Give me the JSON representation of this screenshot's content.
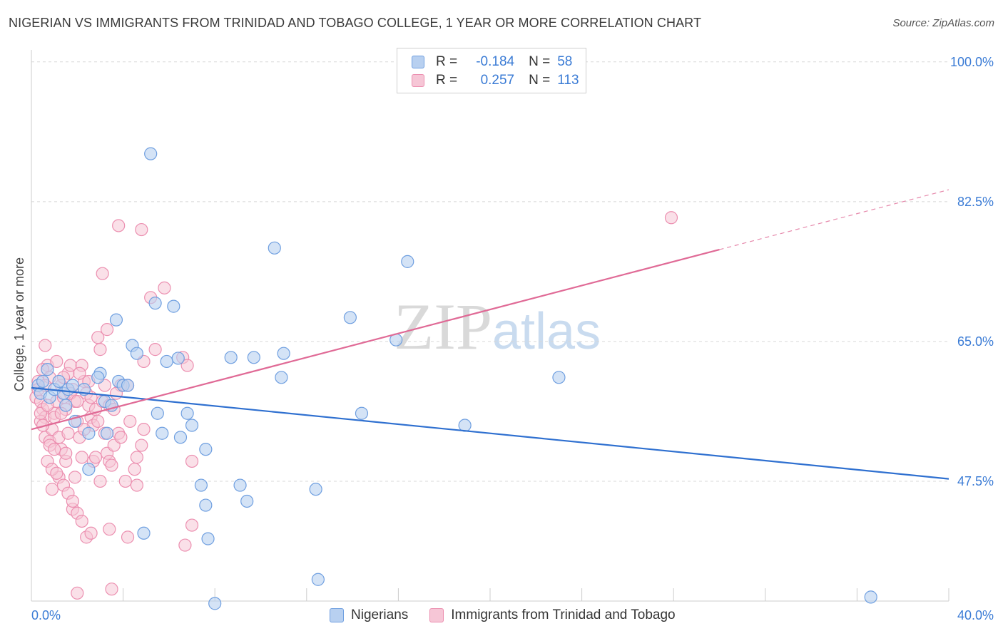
{
  "title": "NIGERIAN VS IMMIGRANTS FROM TRINIDAD AND TOBAGO COLLEGE, 1 YEAR OR MORE CORRELATION CHART",
  "source": "Source: ZipAtlas.com",
  "watermark": {
    "zip": "ZIP",
    "atlas": "atlas"
  },
  "legend": {
    "rows": [
      {
        "r_label": "R =",
        "r_value": "-0.184",
        "n_label": "N =",
        "n_value": "58"
      },
      {
        "r_label": "R =",
        "r_value": "0.257",
        "n_label": "N =",
        "n_value": "113"
      }
    ]
  },
  "bottom_legend": {
    "blue": "Nigerians",
    "pink": "Immigrants from Trinidad and Tobago"
  },
  "colors": {
    "blue_fill": "#b8d0f0",
    "blue_stroke": "#6f9fe0",
    "blue_line": "#2f70d0",
    "pink_fill": "#f6c6d6",
    "pink_stroke": "#ec8fb0",
    "pink_line": "#e06a96",
    "grid": "#d8d8d8",
    "tick_label": "#3a7bd5"
  },
  "chart_data": {
    "type": "scatter",
    "title": "NIGERIAN VS IMMIGRANTS FROM TRINIDAD AND TOBAGO COLLEGE, 1 YEAR OR MORE CORRELATION CHART",
    "xlabel": "",
    "ylabel": "College, 1 year or more",
    "xlim": [
      0,
      40
    ],
    "ylim": [
      32.5,
      101.5
    ],
    "x_tick_labels": [
      "0.0%",
      "40.0%"
    ],
    "y_ticks": [
      100.0,
      82.5,
      65.0,
      47.5
    ],
    "y_tick_labels": [
      "100.0%",
      "82.5%",
      "65.0%",
      "47.5%"
    ],
    "grid": true,
    "series": [
      {
        "name": "Nigerians",
        "r": -0.184,
        "n": 58,
        "trend": {
          "x0": 0,
          "y0": 59.2,
          "x1": 40,
          "y1": 47.8,
          "dashed_from": null
        },
        "points": [
          [
            0.3,
            59.5
          ],
          [
            0.5,
            60.0
          ],
          [
            0.7,
            61.5
          ],
          [
            0.4,
            58.5
          ],
          [
            0.8,
            58.0
          ],
          [
            1.0,
            59.0
          ],
          [
            1.2,
            60.0
          ],
          [
            1.4,
            58.5
          ],
          [
            1.6,
            59.0
          ],
          [
            1.8,
            59.5
          ],
          [
            1.5,
            57.0
          ],
          [
            1.9,
            55.0
          ],
          [
            2.5,
            53.5
          ],
          [
            2.3,
            59.0
          ],
          [
            3.0,
            61.0
          ],
          [
            2.9,
            60.5
          ],
          [
            3.2,
            57.5
          ],
          [
            3.5,
            57.0
          ],
          [
            3.8,
            60.0
          ],
          [
            4.0,
            59.5
          ],
          [
            4.2,
            59.5
          ],
          [
            3.7,
            67.7
          ],
          [
            4.4,
            64.5
          ],
          [
            4.6,
            63.5
          ],
          [
            5.2,
            88.5
          ],
          [
            5.4,
            69.8
          ],
          [
            5.5,
            56.0
          ],
          [
            5.7,
            53.5
          ],
          [
            5.9,
            62.5
          ],
          [
            6.2,
            69.4
          ],
          [
            6.4,
            62.9
          ],
          [
            6.8,
            56.0
          ],
          [
            7.0,
            54.5
          ],
          [
            6.5,
            53.0
          ],
          [
            7.6,
            51.5
          ],
          [
            7.4,
            47.0
          ],
          [
            7.6,
            44.5
          ],
          [
            7.7,
            40.3
          ],
          [
            8.0,
            32.2
          ],
          [
            8.7,
            63.0
          ],
          [
            9.1,
            47.0
          ],
          [
            9.4,
            45.0
          ],
          [
            9.7,
            63.0
          ],
          [
            10.6,
            76.7
          ],
          [
            10.9,
            60.5
          ],
          [
            11.0,
            63.5
          ],
          [
            12.4,
            46.5
          ],
          [
            12.5,
            35.2
          ],
          [
            13.9,
            68.0
          ],
          [
            14.4,
            56.0
          ],
          [
            15.9,
            65.2
          ],
          [
            16.4,
            75.0
          ],
          [
            18.9,
            54.5
          ],
          [
            23.0,
            60.5
          ],
          [
            36.6,
            33.0
          ],
          [
            4.9,
            41.0
          ],
          [
            3.3,
            53.5
          ],
          [
            2.5,
            49.0
          ]
        ]
      },
      {
        "name": "Immigrants from Trinidad and Tobago",
        "r": 0.257,
        "n": 113,
        "trend": {
          "x0": 0,
          "y0": 54.0,
          "x1": 40,
          "y1": 84.0,
          "dashed_from": 30.0
        },
        "points": [
          [
            0.2,
            58.0
          ],
          [
            0.3,
            60.0
          ],
          [
            0.4,
            57.5
          ],
          [
            0.5,
            56.5
          ],
          [
            0.6,
            55.5
          ],
          [
            0.7,
            62.0
          ],
          [
            0.5,
            61.5
          ],
          [
            0.4,
            55.0
          ],
          [
            0.6,
            53.0
          ],
          [
            0.8,
            52.5
          ],
          [
            0.9,
            54.0
          ],
          [
            1.0,
            56.0
          ],
          [
            1.1,
            57.5
          ],
          [
            1.2,
            53.0
          ],
          [
            1.3,
            51.5
          ],
          [
            1.4,
            58.0
          ],
          [
            1.5,
            56.5
          ],
          [
            1.6,
            61.0
          ],
          [
            1.7,
            62.0
          ],
          [
            1.8,
            59.0
          ],
          [
            1.9,
            57.5
          ],
          [
            2.0,
            55.0
          ],
          [
            2.1,
            53.0
          ],
          [
            2.2,
            62.0
          ],
          [
            2.3,
            60.0
          ],
          [
            2.4,
            58.5
          ],
          [
            2.5,
            57.0
          ],
          [
            2.6,
            55.5
          ],
          [
            2.7,
            54.5
          ],
          [
            2.8,
            56.5
          ],
          [
            2.9,
            65.5
          ],
          [
            3.0,
            64.0
          ],
          [
            3.1,
            57.5
          ],
          [
            3.2,
            53.5
          ],
          [
            3.3,
            51.0
          ],
          [
            3.4,
            50.0
          ],
          [
            3.5,
            49.5
          ],
          [
            3.6,
            52.0
          ],
          [
            3.8,
            53.5
          ],
          [
            3.9,
            59.5
          ],
          [
            1.2,
            48.0
          ],
          [
            1.4,
            47.0
          ],
          [
            1.6,
            46.0
          ],
          [
            1.8,
            44.0
          ],
          [
            2.0,
            43.5
          ],
          [
            2.2,
            42.5
          ],
          [
            2.4,
            40.5
          ],
          [
            2.6,
            41.0
          ],
          [
            0.7,
            50.0
          ],
          [
            0.9,
            49.0
          ],
          [
            1.1,
            48.5
          ],
          [
            0.9,
            46.5
          ],
          [
            1.5,
            50.0
          ],
          [
            1.9,
            48.0
          ],
          [
            2.7,
            50.0
          ],
          [
            3.0,
            47.5
          ],
          [
            3.4,
            41.5
          ],
          [
            4.2,
            40.5
          ],
          [
            3.5,
            34.0
          ],
          [
            2.0,
            33.5
          ],
          [
            3.8,
            79.5
          ],
          [
            4.8,
            79.0
          ],
          [
            3.1,
            73.5
          ],
          [
            5.2,
            70.5
          ],
          [
            5.8,
            71.7
          ],
          [
            3.3,
            66.5
          ],
          [
            5.4,
            64.0
          ],
          [
            6.6,
            63.0
          ],
          [
            6.8,
            62.0
          ],
          [
            4.9,
            62.5
          ],
          [
            0.6,
            64.5
          ],
          [
            7.0,
            50.0
          ],
          [
            7.0,
            42.0
          ],
          [
            6.7,
            39.5
          ],
          [
            2.8,
            50.5
          ],
          [
            4.1,
            47.5
          ],
          [
            4.5,
            49.0
          ],
          [
            4.8,
            52.0
          ],
          [
            4.9,
            54.0
          ],
          [
            3.7,
            58.5
          ],
          [
            4.2,
            59.5
          ],
          [
            3.4,
            57.0
          ],
          [
            2.5,
            60.0
          ],
          [
            1.3,
            59.5
          ],
          [
            1.7,
            58.5
          ],
          [
            0.8,
            60.5
          ],
          [
            0.3,
            59.0
          ],
          [
            1.0,
            55.5
          ],
          [
            1.6,
            53.5
          ],
          [
            2.3,
            54.0
          ],
          [
            2.9,
            55.0
          ],
          [
            3.6,
            56.5
          ],
          [
            4.3,
            55.0
          ],
          [
            0.4,
            56.0
          ],
          [
            0.7,
            57.0
          ],
          [
            1.3,
            56.0
          ],
          [
            2.0,
            57.5
          ],
          [
            2.6,
            58.0
          ],
          [
            3.2,
            59.5
          ],
          [
            0.6,
            59.5
          ],
          [
            1.1,
            62.5
          ],
          [
            1.4,
            60.5
          ],
          [
            2.1,
            61.0
          ],
          [
            27.9,
            80.5
          ],
          [
            0.8,
            52.0
          ],
          [
            1.5,
            51.0
          ],
          [
            2.2,
            50.5
          ],
          [
            3.9,
            53.0
          ],
          [
            4.6,
            50.5
          ],
          [
            0.5,
            54.5
          ],
          [
            1.0,
            51.5
          ],
          [
            1.8,
            45.0
          ],
          [
            4.6,
            47.0
          ]
        ]
      }
    ]
  }
}
